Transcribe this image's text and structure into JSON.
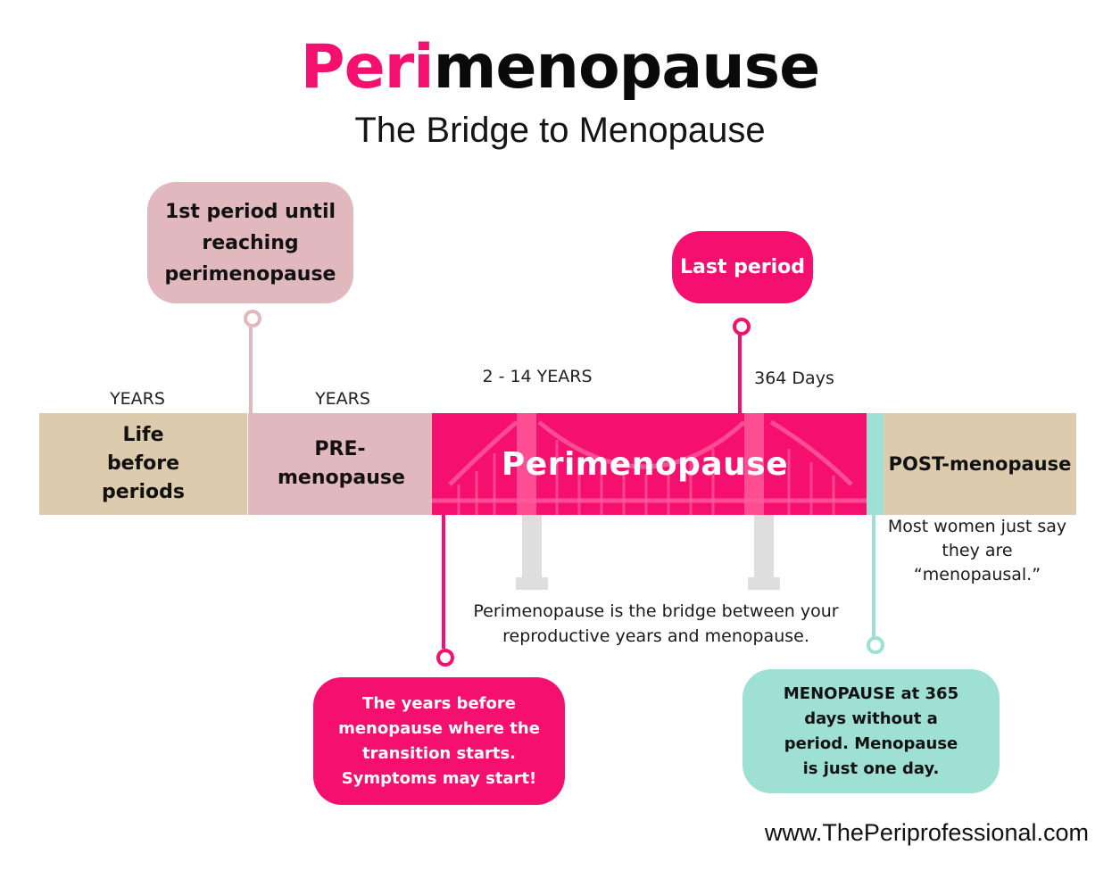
{
  "title": {
    "highlight": "Peri",
    "rest": "menopause"
  },
  "subtitle": "The Bridge to Menopause",
  "timeline": {
    "life_before": {
      "years": "YEARS",
      "label": "Life before periods"
    },
    "pre": {
      "years": "YEARS",
      "label": "PRE- menopause"
    },
    "peri": {
      "years": "2 - 14 YEARS",
      "label": "Perimenopause"
    },
    "post": {
      "label": "POST-menopause"
    },
    "days": "364 Days"
  },
  "callouts": {
    "first_period": "1st period until reaching perimenopause",
    "last_period": "Last period",
    "years_before": "The years before menopause where the transition starts. Symptoms may start!",
    "menopause": "MENOPAUSE at 365 days without a period. Menopause is just one day."
  },
  "notes": {
    "bridge": "Perimenopause is the bridge between your reproductive years and menopause.",
    "most_women": "Most women just say they are “menopausal.”"
  },
  "website": "www.ThePeriprofessional.com",
  "colors": {
    "pink": "#f5106f",
    "tan": "#dccbad",
    "rose": "#e2b8bf",
    "teal": "#9ee0d4"
  }
}
